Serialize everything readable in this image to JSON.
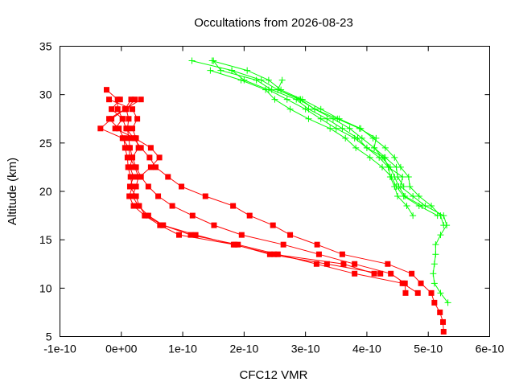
{
  "chart_data": {
    "type": "line",
    "title": "Occultations from 2026-08-23",
    "xlabel": "CFC12 VMR",
    "ylabel": "Altitude (km)",
    "xlim": [
      -1e-10,
      6e-10
    ],
    "ylim": [
      5,
      35
    ],
    "x_ticks": [
      "-1e-10",
      "0e+00",
      "1e-10",
      "2e-10",
      "3e-10",
      "4e-10",
      "5e-10",
      "6e-10"
    ],
    "x_tick_values": [
      -1e-10,
      0,
      1e-10,
      2e-10,
      3e-10,
      4e-10,
      5e-10,
      6e-10
    ],
    "y_ticks": [
      "5",
      "10",
      "15",
      "20",
      "25",
      "30",
      "35"
    ],
    "y_tick_values": [
      5,
      10,
      15,
      20,
      25,
      30,
      35
    ],
    "grid": false,
    "legend": "none",
    "series": [
      {
        "color": "#ff0000",
        "marker": "square",
        "points": [
          [
            5.25e-10,
            5.5
          ],
          [
            5.24e-10,
            6.5
          ],
          [
            5.19e-10,
            7.5
          ],
          [
            5.1e-10,
            8.5
          ],
          [
            5.05e-10,
            9.5
          ],
          [
            4.88e-10,
            10.5
          ],
          [
            4.73e-10,
            11.5
          ],
          [
            4.34e-10,
            12.5
          ],
          [
            3.6e-10,
            13.5
          ],
          [
            3.19e-10,
            14.5
          ],
          [
            2.75e-10,
            15.5
          ],
          [
            2.47e-10,
            16.5
          ],
          [
            2.09e-10,
            17.5
          ],
          [
            1.82e-10,
            18.5
          ],
          [
            1.37e-10,
            19.5
          ],
          [
            9.8e-11,
            20.5
          ],
          [
            7.6e-11,
            21.5
          ],
          [
            5.6e-11,
            22.5
          ],
          [
            4.6e-11,
            23.5
          ],
          [
            3.2e-11,
            24.5
          ],
          [
            2e-11,
            25.5
          ],
          [
            8e-12,
            26.5
          ],
          [
            2e-12,
            27.5
          ],
          [
            -6e-12,
            28.5
          ],
          [
            -6e-12,
            29.5
          ],
          [
            -2.4e-11,
            30.5
          ]
        ]
      },
      {
        "color": "#ff0000",
        "marker": "square",
        "points": [
          [
            4.63e-10,
            9.5
          ],
          [
            4.62e-10,
            10.5
          ],
          [
            4.39e-10,
            11.5
          ],
          [
            3.8e-10,
            12.5
          ],
          [
            3.22e-10,
            13.5
          ],
          [
            2.64e-10,
            14.5
          ],
          [
            1.96e-10,
            15.5
          ],
          [
            1.51e-10,
            16.5
          ],
          [
            1.16e-10,
            17.5
          ],
          [
            8.3e-11,
            18.5
          ],
          [
            6e-11,
            19.5
          ],
          [
            4.4e-11,
            20.5
          ],
          [
            3.2e-11,
            21.5
          ],
          [
            2.4e-11,
            22.5
          ],
          [
            1.8e-11,
            23.5
          ],
          [
            1.4e-11,
            24.5
          ],
          [
            1.2e-11,
            25.5
          ],
          [
            1e-11,
            26.5
          ],
          [
            1.2e-11,
            27.5
          ],
          [
            8e-12,
            28.5
          ],
          [
            2.2e-11,
            29.5
          ]
        ]
      },
      {
        "color": "#ff0000",
        "marker": "square",
        "points": [
          [
            4.83e-10,
            9.5
          ],
          [
            4.58e-10,
            10.5
          ],
          [
            3.8e-10,
            11.5
          ],
          [
            3.18e-10,
            12.5
          ],
          [
            2.55e-10,
            13.5
          ],
          [
            1.9e-10,
            14.5
          ],
          [
            1.13e-10,
            15.5
          ],
          [
            6.8e-11,
            16.5
          ],
          [
            4.4e-11,
            17.5
          ],
          [
            2.8e-11,
            18.5
          ],
          [
            1.8e-11,
            19.5
          ],
          [
            2.4e-11,
            20.5
          ],
          [
            2.8e-11,
            21.5
          ],
          [
            2.2e-11,
            22.5
          ],
          [
            1.4e-11,
            23.5
          ],
          [
            1.2e-11,
            24.5
          ],
          [
            2e-12,
            25.5
          ],
          [
            -3.4e-11,
            26.5
          ],
          [
            -1.6e-11,
            27.5
          ],
          [
            6e-12,
            28.5
          ],
          [
            3.2e-11,
            29.5
          ]
        ]
      },
      {
        "color": "#ff0000",
        "marker": "square",
        "points": [
          [
            4.22e-10,
            11.5
          ],
          [
            3.35e-10,
            12.5
          ],
          [
            2.42e-10,
            13.5
          ],
          [
            1.85e-10,
            14.5
          ],
          [
            9.4e-11,
            15.5
          ],
          [
            6.3e-11,
            16.5
          ],
          [
            3.8e-11,
            17.5
          ],
          [
            2e-11,
            18.5
          ],
          [
            1.3e-11,
            19.5
          ],
          [
            1.8e-11,
            20.5
          ],
          [
            1.5e-11,
            21.5
          ],
          [
            1.1e-11,
            22.5
          ],
          [
            1e-11,
            23.5
          ],
          [
            6e-12,
            24.5
          ],
          [
            4e-12,
            25.5
          ],
          [
            -4e-12,
            26.5
          ],
          [
            -2e-11,
            27.5
          ],
          [
            6e-12,
            28.5
          ],
          [
            1.6e-11,
            29.5
          ]
        ]
      },
      {
        "color": "#ff0000",
        "marker": "square",
        "points": [
          [
            4.12e-10,
            11.5
          ],
          [
            3.62e-10,
            12.5
          ],
          [
            2.49e-10,
            13.5
          ],
          [
            1.83e-10,
            14.5
          ],
          [
            1.21e-10,
            15.5
          ],
          [
            6.8e-11,
            16.5
          ],
          [
            4e-11,
            17.5
          ],
          [
            2.9e-11,
            18.5
          ],
          [
            2.4e-11,
            19.5
          ],
          [
            1.4e-11,
            20.5
          ],
          [
            2e-11,
            21.5
          ],
          [
            1.4e-11,
            22.5
          ],
          [
            1.8e-11,
            23.5
          ],
          [
            2.8e-11,
            24.5
          ],
          [
            2.4e-11,
            25.5
          ],
          [
            1.8e-11,
            26.5
          ],
          [
            2.6e-11,
            27.5
          ],
          [
            1.8e-11,
            28.5
          ],
          [
            -2e-11,
            29.5
          ]
        ]
      },
      {
        "color": "#ff0000",
        "marker": "square",
        "points": [
          [
            3e-11,
            21.5
          ],
          [
            4.8e-11,
            22.5
          ],
          [
            6.2e-11,
            23.5
          ],
          [
            4.8e-11,
            24.5
          ],
          [
            2.2e-11,
            25.5
          ],
          [
            -1e-11,
            26.5
          ],
          [
            2e-12,
            27.5
          ],
          [
            -1.6e-11,
            28.5
          ],
          [
            -2e-12,
            29.5
          ]
        ]
      },
      {
        "color": "#00ff00",
        "marker": "plus",
        "points": [
          [
            5.32e-10,
            8.5
          ],
          [
            5.2e-10,
            9.5
          ],
          [
            5.1e-10,
            10.5
          ],
          [
            5.08e-10,
            11.5
          ],
          [
            5.1e-10,
            12.5
          ],
          [
            5.12e-10,
            13.5
          ],
          [
            5.12e-10,
            14.5
          ],
          [
            5.2e-10,
            15.5
          ],
          [
            5.3e-10,
            16.5
          ],
          [
            5.25e-10,
            17.5
          ],
          [
            4.95e-10,
            18.5
          ],
          [
            4.75e-10,
            19.5
          ],
          [
            4.55e-10,
            20.5
          ],
          [
            4.58e-10,
            21.5
          ],
          [
            4.35e-10,
            22.5
          ],
          [
            4.2e-10,
            23.5
          ],
          [
            4e-10,
            24.5
          ],
          [
            3.8e-10,
            25.5
          ],
          [
            3.5e-10,
            26.5
          ],
          [
            3.25e-10,
            27.5
          ],
          [
            3e-10,
            28.5
          ],
          [
            2.7e-10,
            29.5
          ],
          [
            2.4e-10,
            30.5
          ],
          [
            2e-10,
            31.5
          ],
          [
            1.8e-10,
            32.5
          ],
          [
            1.15e-10,
            33.5
          ]
        ]
      },
      {
        "color": "#00ff00",
        "marker": "plus",
        "points": [
          [
            5.25e-10,
            16.5
          ],
          [
            5.2e-10,
            17.5
          ],
          [
            5.05e-10,
            18.5
          ],
          [
            4.85e-10,
            19.5
          ],
          [
            4.7e-10,
            20.5
          ],
          [
            4.68e-10,
            21.5
          ],
          [
            4.55e-10,
            22.5
          ],
          [
            4.45e-10,
            23.5
          ],
          [
            4.3e-10,
            24.5
          ],
          [
            4.1e-10,
            25.5
          ],
          [
            3.9e-10,
            26.5
          ],
          [
            3.55e-10,
            27.5
          ],
          [
            3.25e-10,
            28.5
          ],
          [
            2.95e-10,
            29.5
          ],
          [
            2.6e-10,
            30.5
          ],
          [
            2.4e-10,
            31.5
          ],
          [
            2.05e-10,
            32.5
          ],
          [
            1.48e-10,
            33.5
          ]
        ]
      },
      {
        "color": "#00ff00",
        "marker": "plus",
        "points": [
          [
            4.75e-10,
            17.5
          ],
          [
            4.65e-10,
            18.5
          ],
          [
            4.5e-10,
            19.5
          ],
          [
            4.45e-10,
            20.5
          ],
          [
            4.38e-10,
            21.5
          ],
          [
            4.35e-10,
            22.5
          ],
          [
            4.28e-10,
            23.5
          ],
          [
            4e-10,
            24.5
          ],
          [
            3.85e-10,
            25.5
          ],
          [
            3.6e-10,
            26.5
          ],
          [
            3.35e-10,
            27.5
          ],
          [
            3.05e-10,
            28.5
          ],
          [
            2.85e-10,
            29.5
          ],
          [
            2.45e-10,
            30.5
          ],
          [
            2.2e-10,
            31.5
          ],
          [
            1.62e-10,
            32.5
          ],
          [
            1.5e-10,
            33.5
          ]
        ]
      },
      {
        "color": "#00ff00",
        "marker": "plus",
        "points": [
          [
            5.15e-10,
            17.5
          ],
          [
            4.85e-10,
            18.5
          ],
          [
            4.6e-10,
            19.5
          ],
          [
            4.48e-10,
            20.5
          ],
          [
            4.4e-10,
            21.5
          ],
          [
            4.25e-10,
            22.5
          ],
          [
            4.05e-10,
            23.5
          ],
          [
            3.82e-10,
            24.5
          ],
          [
            3.65e-10,
            25.5
          ],
          [
            3.4e-10,
            26.5
          ],
          [
            3.05e-10,
            27.5
          ],
          [
            2.75e-10,
            28.5
          ],
          [
            2.5e-10,
            29.5
          ],
          [
            2.35e-10,
            30.5
          ],
          [
            1.95e-10,
            31.5
          ],
          [
            1.45e-10,
            32.5
          ]
        ]
      },
      {
        "color": "#00ff00",
        "marker": "plus",
        "points": [
          [
            4.9e-10,
            18.5
          ],
          [
            4.62e-10,
            19.5
          ],
          [
            4.52e-10,
            20.5
          ],
          [
            4.45e-10,
            21.5
          ],
          [
            4.38e-10,
            22.5
          ],
          [
            4.25e-10,
            23.5
          ],
          [
            4.12e-10,
            24.5
          ],
          [
            3.92e-10,
            25.5
          ],
          [
            3.72e-10,
            26.5
          ],
          [
            3.45e-10,
            27.5
          ],
          [
            3.15e-10,
            28.5
          ],
          [
            2.92e-10,
            29.5
          ],
          [
            2.55e-10,
            30.5
          ],
          [
            2.28e-10,
            31.5
          ],
          [
            1.8e-10,
            32.5
          ]
        ]
      },
      {
        "color": "#00ff00",
        "marker": "plus",
        "points": [
          [
            4.6e-10,
            20.5
          ],
          [
            4.5e-10,
            21.5
          ],
          [
            4.48e-10,
            22.5
          ],
          [
            4.3e-10,
            23.5
          ],
          [
            4.12e-10,
            24.5
          ],
          [
            4.15e-10,
            25.5
          ],
          [
            3.88e-10,
            26.5
          ],
          [
            3.52e-10,
            27.5
          ],
          [
            3.15e-10,
            28.5
          ],
          [
            2.9e-10,
            29.5
          ],
          [
            2.55e-10,
            30.5
          ],
          [
            2.62e-10,
            31.5
          ]
        ]
      }
    ]
  }
}
